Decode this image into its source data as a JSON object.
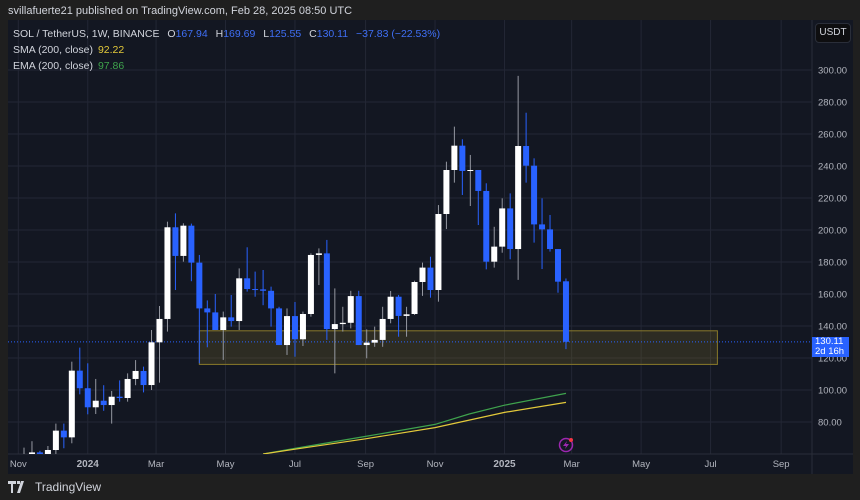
{
  "header": {
    "published": "svillafuerte21 published on TradingView.com, Feb 28, 2025 08:50 UTC"
  },
  "legend": {
    "symbol": "SOL / TetherUS, 1W, BINANCE",
    "open_label": "O",
    "open": "167.94",
    "high_label": "H",
    "high": "169.69",
    "low_label": "L",
    "low": "125.55",
    "close_label": "C",
    "close": "130.11",
    "change": "−37.83 (−22.53%)",
    "sma_label": "SMA (200, close)",
    "sma_value": "92.22",
    "ema_label": "EMA (200, close)",
    "ema_value": "97.86"
  },
  "currency_button": "USDT",
  "price_tag": {
    "price": "130.11",
    "countdown": "2d 16h"
  },
  "footer": {
    "brand": "TradingView"
  },
  "icons": {
    "logo": "tradingview-logo-icon",
    "alert": "lightning-icon"
  },
  "colors": {
    "up": "#ffffff",
    "down": "#2962ff",
    "sma": "#e3c93a",
    "ema": "#3fa34d",
    "zone": "#8a7a2a",
    "background": "#131722"
  },
  "chart_data": {
    "type": "candlestick",
    "interval": "1W",
    "ylim": [
      60,
      310
    ],
    "y_ticks": [
      "80.00",
      "100.00",
      "120.00",
      "140.00",
      "160.00",
      "180.00",
      "200.00",
      "220.00",
      "240.00",
      "260.00",
      "280.00",
      "300.00"
    ],
    "x_ticks": [
      {
        "label": "Nov",
        "date": "2023-11-01"
      },
      {
        "label": "2024",
        "date": "2024-01-01"
      },
      {
        "label": "Mar",
        "date": "2024-03-01"
      },
      {
        "label": "May",
        "date": "2024-05-01"
      },
      {
        "label": "Jul",
        "date": "2024-07-01"
      },
      {
        "label": "Sep",
        "date": "2024-09-01"
      },
      {
        "label": "Nov",
        "date": "2024-11-01"
      },
      {
        "label": "2025",
        "date": "2025-01-01"
      },
      {
        "label": "Mar",
        "date": "2025-03-01"
      },
      {
        "label": "May",
        "date": "2025-05-01"
      },
      {
        "label": "Jul",
        "date": "2025-07-01"
      },
      {
        "label": "Sep",
        "date": "2025-09-01"
      }
    ],
    "columns": [
      "date",
      "open",
      "high",
      "low",
      "close"
    ],
    "candles": [
      [
        "2023-11-06",
        58,
        64,
        56,
        60
      ],
      [
        "2023-11-13",
        59,
        68,
        55,
        61
      ],
      [
        "2023-11-20",
        61,
        62,
        55,
        59
      ],
      [
        "2023-11-27",
        59,
        65,
        56,
        62.5
      ],
      [
        "2023-12-04",
        62.5,
        79,
        60,
        74.6
      ],
      [
        "2023-12-11",
        74.6,
        79,
        63.6,
        70.4
      ],
      [
        "2023-12-18",
        70.4,
        117.7,
        66.7,
        112.1
      ],
      [
        "2023-12-25",
        112.1,
        126.5,
        97.3,
        101.1
      ],
      [
        "2024-01-01",
        101.1,
        116.7,
        84.8,
        89.2
      ],
      [
        "2024-01-08",
        89.2,
        106.9,
        85,
        93.3
      ],
      [
        "2024-01-15",
        93.3,
        103,
        87,
        90.6
      ],
      [
        "2024-01-22",
        90.6,
        99.4,
        79,
        95.8
      ],
      [
        "2024-01-29",
        95.8,
        106,
        92.7,
        95
      ],
      [
        "2024-02-05",
        95,
        110.4,
        92.7,
        106.9
      ],
      [
        "2024-02-12",
        106.9,
        118.7,
        103,
        111.9
      ],
      [
        "2024-02-19",
        111.9,
        114.6,
        98.5,
        103.1
      ],
      [
        "2024-02-26",
        103.1,
        137.5,
        100,
        129.8
      ],
      [
        "2024-03-04",
        129.8,
        152.5,
        104.6,
        144.4
      ],
      [
        "2024-03-11",
        144.4,
        205.2,
        136.5,
        201.7
      ],
      [
        "2024-03-18",
        201.7,
        210.4,
        162.5,
        183.8
      ],
      [
        "2024-03-25",
        183.8,
        204.2,
        180.2,
        202.7
      ],
      [
        "2024-04-01",
        202.7,
        204,
        168,
        179.6
      ],
      [
        "2024-04-08",
        179.6,
        184.4,
        116.7,
        151
      ],
      [
        "2024-04-15",
        151,
        156,
        126.7,
        148.5
      ],
      [
        "2024-04-22",
        148.5,
        160,
        137.5,
        137.5
      ],
      [
        "2024-04-29",
        137.5,
        149,
        118.8,
        145.4
      ],
      [
        "2024-05-06",
        145.4,
        159.4,
        139.6,
        143.1
      ],
      [
        "2024-05-13",
        143.1,
        176,
        137.5,
        169.8
      ],
      [
        "2024-05-20",
        169.8,
        189.2,
        161.5,
        163.1
      ],
      [
        "2024-05-27",
        163.1,
        174,
        158.3,
        162.9
      ],
      [
        "2024-06-03",
        162.9,
        175,
        153,
        162
      ],
      [
        "2024-06-10",
        162,
        164.6,
        139.6,
        151
      ],
      [
        "2024-06-17",
        151,
        152,
        128.1,
        128.1
      ],
      [
        "2024-06-24",
        128.1,
        151,
        121.9,
        146.2
      ],
      [
        "2024-07-01",
        146.2,
        155,
        120.8,
        131.7
      ],
      [
        "2024-07-08",
        131.7,
        149,
        127.5,
        147.5
      ],
      [
        "2024-07-15",
        147.5,
        185.4,
        145.8,
        184.4
      ],
      [
        "2024-07-22",
        184.4,
        188.5,
        165.6,
        185.4
      ],
      [
        "2024-07-29",
        185.4,
        193.8,
        131.3,
        138.1
      ],
      [
        "2024-08-05",
        138.1,
        163.5,
        110.4,
        141.2
      ],
      [
        "2024-08-12",
        141.2,
        152,
        136.5,
        142
      ],
      [
        "2024-08-19",
        142,
        162,
        138.5,
        158.7
      ],
      [
        "2024-08-26",
        158.7,
        162,
        128.1,
        128.1
      ],
      [
        "2024-09-02",
        128.1,
        137.9,
        119.8,
        129.6
      ],
      [
        "2024-09-09",
        129.6,
        139.6,
        127,
        131.3
      ],
      [
        "2024-09-16",
        131.3,
        152,
        127,
        144.4
      ],
      [
        "2024-09-23",
        144.4,
        161.9,
        141.7,
        158.3
      ],
      [
        "2024-09-30",
        158.3,
        159.4,
        133.3,
        146.3
      ],
      [
        "2024-10-07",
        146.3,
        152,
        133.3,
        147.3
      ],
      [
        "2024-10-14",
        147.5,
        168.3,
        146.9,
        167.5
      ],
      [
        "2024-10-21",
        167.5,
        179.6,
        158.8,
        176.5
      ],
      [
        "2024-10-28",
        176.5,
        183.3,
        157.7,
        162.5
      ],
      [
        "2024-11-04",
        162.5,
        215.6,
        155.2,
        210
      ],
      [
        "2024-11-11",
        210,
        242.7,
        200.6,
        237.5
      ],
      [
        "2024-11-18",
        237.5,
        264.6,
        229.6,
        252.7
      ],
      [
        "2024-11-25",
        252.7,
        256.7,
        221.9,
        236.9
      ],
      [
        "2024-12-02",
        236.9,
        246.9,
        215,
        237.5
      ],
      [
        "2024-12-09",
        237.5,
        237.5,
        203.1,
        224.4
      ],
      [
        "2024-12-16",
        224.4,
        229.2,
        175.4,
        180.2
      ],
      [
        "2024-12-23",
        180.2,
        202,
        176.5,
        189.6
      ],
      [
        "2024-12-30",
        189.6,
        219.8,
        185.8,
        213.5
      ],
      [
        "2025-01-06",
        213.5,
        222.9,
        181.7,
        188.1
      ],
      [
        "2025-01-13",
        188.1,
        296.3,
        168.8,
        252.5
      ],
      [
        "2025-01-20",
        252.5,
        273.3,
        229.6,
        240.2
      ],
      [
        "2025-01-27",
        240.2,
        244.8,
        192.1,
        203.5
      ],
      [
        "2025-02-03",
        203.5,
        219.8,
        175.6,
        200.4
      ],
      [
        "2025-02-10",
        200.4,
        209.4,
        186.5,
        188.1
      ],
      [
        "2025-02-17",
        188.1,
        188.1,
        160.8,
        167.7
      ],
      [
        "2025-02-24",
        167.94,
        169.69,
        125.55,
        130.11
      ]
    ],
    "sma_200": [
      [
        "2024-06-03",
        60
      ],
      [
        "2024-07-01",
        63
      ],
      [
        "2024-09-01",
        69.5
      ],
      [
        "2024-11-01",
        76.5
      ],
      [
        "2025-01-01",
        86
      ],
      [
        "2025-02-24",
        92.22
      ]
    ],
    "ema_200": [
      [
        "2024-06-03",
        60
      ],
      [
        "2024-07-01",
        63.5
      ],
      [
        "2024-09-01",
        71
      ],
      [
        "2024-11-01",
        78.5
      ],
      [
        "2024-12-01",
        85
      ],
      [
        "2025-01-01",
        90.5
      ],
      [
        "2025-02-24",
        97.86
      ]
    ],
    "support_zone": {
      "from": "2024-04-08",
      "to": "2025-07-07",
      "low": 116,
      "high": 137
    },
    "last_price": 130.11
  }
}
